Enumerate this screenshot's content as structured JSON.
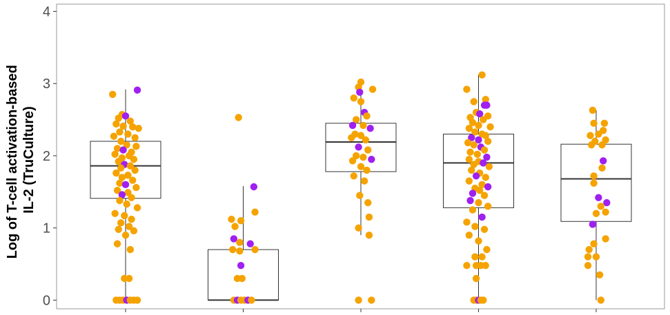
{
  "chart_data": {
    "type": "box",
    "title": "",
    "xlabel": "",
    "ylabel_lines": [
      "Log of T-cell activation-based",
      "IL-2 (TruCulture)"
    ],
    "ylim": [
      -0.12,
      4.1
    ],
    "yticks": [
      0,
      1,
      2,
      3,
      4
    ],
    "xtick_count": 5,
    "grid": false,
    "colors": {
      "orange": "#f5a300",
      "purple": "#a020f0",
      "box_line": "#333333",
      "panel_border": "#999999",
      "tick": "#333333"
    },
    "boxes": [
      {
        "q1": 1.41,
        "median": 1.86,
        "q3": 2.2,
        "whisker_low": 0,
        "whisker_high": 2.92
      },
      {
        "q1": 0,
        "median": 0,
        "q3": 0.7,
        "whisker_low": 0,
        "whisker_high": 1.58
      },
      {
        "q1": 1.78,
        "median": 2.19,
        "q3": 2.45,
        "whisker_low": 0.9,
        "whisker_high": 3.0
      },
      {
        "q1": 1.28,
        "median": 1.9,
        "q3": 2.3,
        "whisker_low": 0,
        "whisker_high": 3.12
      },
      {
        "q1": 1.09,
        "median": 1.68,
        "q3": 2.16,
        "whisker_low": 0,
        "whisker_high": 2.63
      }
    ],
    "points": [
      [
        {
          "x": 0.89,
          "y": 2.85,
          "g": "o"
        },
        {
          "x": 1.1,
          "y": 2.91,
          "g": "p"
        },
        {
          "x": 0.97,
          "y": 2.57,
          "g": "o"
        },
        {
          "x": 1.0,
          "y": 2.55,
          "g": "p"
        },
        {
          "x": 0.94,
          "y": 2.52,
          "g": "o"
        },
        {
          "x": 1.04,
          "y": 2.48,
          "g": "o"
        },
        {
          "x": 0.92,
          "y": 2.44,
          "g": "o"
        },
        {
          "x": 0.98,
          "y": 2.41,
          "g": "o"
        },
        {
          "x": 1.06,
          "y": 2.4,
          "g": "o"
        },
        {
          "x": 1.11,
          "y": 2.38,
          "g": "o"
        },
        {
          "x": 0.95,
          "y": 2.33,
          "g": "o"
        },
        {
          "x": 1.02,
          "y": 2.3,
          "g": "o"
        },
        {
          "x": 0.9,
          "y": 2.27,
          "g": "o"
        },
        {
          "x": 1.08,
          "y": 2.25,
          "g": "o"
        },
        {
          "x": 0.96,
          "y": 2.2,
          "g": "o"
        },
        {
          "x": 1.01,
          "y": 2.15,
          "g": "o"
        },
        {
          "x": 1.09,
          "y": 2.13,
          "g": "o"
        },
        {
          "x": 0.93,
          "y": 2.1,
          "g": "o"
        },
        {
          "x": 0.98,
          "y": 2.08,
          "g": "p"
        },
        {
          "x": 1.05,
          "y": 2.05,
          "g": "o"
        },
        {
          "x": 0.91,
          "y": 2.02,
          "g": "o"
        },
        {
          "x": 1.03,
          "y": 2.0,
          "g": "o"
        },
        {
          "x": 0.97,
          "y": 1.97,
          "g": "o"
        },
        {
          "x": 1.07,
          "y": 1.95,
          "g": "o"
        },
        {
          "x": 0.94,
          "y": 1.92,
          "g": "o"
        },
        {
          "x": 0.99,
          "y": 1.88,
          "g": "p"
        },
        {
          "x": 1.04,
          "y": 1.86,
          "g": "o"
        },
        {
          "x": 0.96,
          "y": 1.83,
          "g": "o"
        },
        {
          "x": 1.08,
          "y": 1.8,
          "g": "o"
        },
        {
          "x": 0.92,
          "y": 1.76,
          "g": "o"
        },
        {
          "x": 1.02,
          "y": 1.73,
          "g": "o"
        },
        {
          "x": 0.97,
          "y": 1.7,
          "g": "o"
        },
        {
          "x": 1.06,
          "y": 1.66,
          "g": "o"
        },
        {
          "x": 0.95,
          "y": 1.62,
          "g": "o"
        },
        {
          "x": 1.0,
          "y": 1.6,
          "g": "p"
        },
        {
          "x": 1.09,
          "y": 1.56,
          "g": "o"
        },
        {
          "x": 0.93,
          "y": 1.52,
          "g": "o"
        },
        {
          "x": 1.02,
          "y": 1.49,
          "g": "o"
        },
        {
          "x": 0.97,
          "y": 1.46,
          "g": "p"
        },
        {
          "x": 1.05,
          "y": 1.42,
          "g": "o"
        },
        {
          "x": 0.95,
          "y": 1.38,
          "g": "o"
        },
        {
          "x": 1.01,
          "y": 1.33,
          "g": "o"
        },
        {
          "x": 1.1,
          "y": 1.28,
          "g": "o"
        },
        {
          "x": 0.91,
          "y": 1.2,
          "g": "o"
        },
        {
          "x": 0.99,
          "y": 1.17,
          "g": "o"
        },
        {
          "x": 1.05,
          "y": 1.12,
          "g": "o"
        },
        {
          "x": 0.96,
          "y": 1.07,
          "g": "o"
        },
        {
          "x": 1.03,
          "y": 1.02,
          "g": "o"
        },
        {
          "x": 0.94,
          "y": 0.98,
          "g": "o"
        },
        {
          "x": 1.07,
          "y": 0.96,
          "g": "o"
        },
        {
          "x": 1.0,
          "y": 0.9,
          "g": "o"
        },
        {
          "x": 0.93,
          "y": 0.78,
          "g": "o"
        },
        {
          "x": 1.04,
          "y": 0.7,
          "g": "o"
        },
        {
          "x": 0.99,
          "y": 0.3,
          "g": "o"
        },
        {
          "x": 1.03,
          "y": 0.3,
          "g": "o"
        },
        {
          "x": 0.92,
          "y": 0,
          "g": "o"
        },
        {
          "x": 0.95,
          "y": 0,
          "g": "o"
        },
        {
          "x": 0.98,
          "y": 0,
          "g": "o"
        },
        {
          "x": 1.01,
          "y": 0,
          "g": "p"
        },
        {
          "x": 1.04,
          "y": 0,
          "g": "o"
        },
        {
          "x": 1.07,
          "y": 0,
          "g": "o"
        },
        {
          "x": 1.1,
          "y": 0,
          "g": "o"
        }
      ],
      [
        {
          "x": 1.96,
          "y": 2.53,
          "g": "o"
        },
        {
          "x": 2.09,
          "y": 1.57,
          "g": "p"
        },
        {
          "x": 2.1,
          "y": 1.22,
          "g": "o"
        },
        {
          "x": 1.9,
          "y": 1.12,
          "g": "o"
        },
        {
          "x": 1.98,
          "y": 1.1,
          "g": "o"
        },
        {
          "x": 1.93,
          "y": 1.02,
          "g": "o"
        },
        {
          "x": 1.92,
          "y": 0.85,
          "g": "p"
        },
        {
          "x": 1.97,
          "y": 0.8,
          "g": "o"
        },
        {
          "x": 2.06,
          "y": 0.78,
          "g": "p"
        },
        {
          "x": 1.91,
          "y": 0.7,
          "g": "o"
        },
        {
          "x": 1.97,
          "y": 0.68,
          "g": "o"
        },
        {
          "x": 2.1,
          "y": 0.7,
          "g": "o"
        },
        {
          "x": 1.98,
          "y": 0.48,
          "g": "p"
        },
        {
          "x": 1.95,
          "y": 0.3,
          "g": "o"
        },
        {
          "x": 1.99,
          "y": 0.3,
          "g": "o"
        },
        {
          "x": 1.92,
          "y": 0,
          "g": "o"
        },
        {
          "x": 1.95,
          "y": 0,
          "g": "p"
        },
        {
          "x": 1.98,
          "y": 0,
          "g": "o"
        },
        {
          "x": 2.01,
          "y": 0,
          "g": "o"
        },
        {
          "x": 2.04,
          "y": 0,
          "g": "p"
        },
        {
          "x": 2.07,
          "y": 0,
          "g": "o"
        }
      ],
      [
        {
          "x": 3.0,
          "y": 3.02,
          "g": "o"
        },
        {
          "x": 2.98,
          "y": 2.95,
          "g": "o"
        },
        {
          "x": 3.1,
          "y": 2.92,
          "g": "o"
        },
        {
          "x": 2.99,
          "y": 2.88,
          "g": "p"
        },
        {
          "x": 2.94,
          "y": 2.8,
          "g": "o"
        },
        {
          "x": 3.0,
          "y": 2.75,
          "g": "o"
        },
        {
          "x": 3.03,
          "y": 2.6,
          "g": "p"
        },
        {
          "x": 3.05,
          "y": 2.55,
          "g": "o"
        },
        {
          "x": 2.96,
          "y": 2.5,
          "g": "o"
        },
        {
          "x": 2.93,
          "y": 2.42,
          "g": "p"
        },
        {
          "x": 3.02,
          "y": 2.42,
          "g": "o"
        },
        {
          "x": 3.08,
          "y": 2.38,
          "g": "p"
        },
        {
          "x": 2.95,
          "y": 2.3,
          "g": "o"
        },
        {
          "x": 3.0,
          "y": 2.28,
          "g": "o"
        },
        {
          "x": 2.92,
          "y": 2.25,
          "g": "o"
        },
        {
          "x": 3.04,
          "y": 2.22,
          "g": "o"
        },
        {
          "x": 2.98,
          "y": 2.12,
          "g": "p"
        },
        {
          "x": 3.06,
          "y": 2.08,
          "g": "o"
        },
        {
          "x": 2.96,
          "y": 2.0,
          "g": "o"
        },
        {
          "x": 3.02,
          "y": 1.98,
          "g": "o"
        },
        {
          "x": 3.09,
          "y": 1.95,
          "g": "p"
        },
        {
          "x": 2.93,
          "y": 1.93,
          "g": "o"
        },
        {
          "x": 3.0,
          "y": 1.85,
          "g": "o"
        },
        {
          "x": 3.05,
          "y": 1.8,
          "g": "o"
        },
        {
          "x": 2.94,
          "y": 1.72,
          "g": "o"
        },
        {
          "x": 3.03,
          "y": 1.65,
          "g": "o"
        },
        {
          "x": 2.99,
          "y": 1.45,
          "g": "o"
        },
        {
          "x": 3.06,
          "y": 1.35,
          "g": "o"
        },
        {
          "x": 3.07,
          "y": 1.15,
          "g": "o"
        },
        {
          "x": 2.98,
          "y": 1.0,
          "g": "o"
        },
        {
          "x": 3.07,
          "y": 0.9,
          "g": "o"
        },
        {
          "x": 2.98,
          "y": 0,
          "g": "o"
        },
        {
          "x": 3.09,
          "y": 0,
          "g": "o"
        }
      ],
      [
        {
          "x": 4.03,
          "y": 3.12,
          "g": "o"
        },
        {
          "x": 3.9,
          "y": 2.92,
          "g": "o"
        },
        {
          "x": 4.06,
          "y": 2.78,
          "g": "o"
        },
        {
          "x": 3.96,
          "y": 2.75,
          "g": "o"
        },
        {
          "x": 4.07,
          "y": 2.7,
          "g": "p"
        },
        {
          "x": 4.05,
          "y": 2.7,
          "g": "p"
        },
        {
          "x": 3.98,
          "y": 2.6,
          "g": "o"
        },
        {
          "x": 4.01,
          "y": 2.58,
          "g": "p"
        },
        {
          "x": 4.08,
          "y": 2.55,
          "g": "o"
        },
        {
          "x": 3.93,
          "y": 2.53,
          "g": "o"
        },
        {
          "x": 4.04,
          "y": 2.5,
          "g": "o"
        },
        {
          "x": 3.95,
          "y": 2.46,
          "g": "o"
        },
        {
          "x": 4.0,
          "y": 2.42,
          "g": "o"
        },
        {
          "x": 4.1,
          "y": 2.4,
          "g": "o"
        },
        {
          "x": 3.92,
          "y": 2.38,
          "g": "o"
        },
        {
          "x": 3.97,
          "y": 2.33,
          "g": "o"
        },
        {
          "x": 4.03,
          "y": 2.3,
          "g": "o"
        },
        {
          "x": 4.06,
          "y": 2.28,
          "g": "o"
        },
        {
          "x": 3.94,
          "y": 2.25,
          "g": "p"
        },
        {
          "x": 4.0,
          "y": 2.22,
          "g": "p"
        },
        {
          "x": 4.08,
          "y": 2.2,
          "g": "o"
        },
        {
          "x": 3.91,
          "y": 2.18,
          "g": "o"
        },
        {
          "x": 3.96,
          "y": 2.15,
          "g": "o"
        },
        {
          "x": 4.02,
          "y": 2.12,
          "g": "p"
        },
        {
          "x": 4.05,
          "y": 2.08,
          "g": "o"
        },
        {
          "x": 3.93,
          "y": 2.05,
          "g": "o"
        },
        {
          "x": 3.99,
          "y": 2.02,
          "g": "o"
        },
        {
          "x": 4.07,
          "y": 1.98,
          "g": "p"
        },
        {
          "x": 3.92,
          "y": 1.95,
          "g": "o"
        },
        {
          "x": 4.0,
          "y": 1.92,
          "g": "o"
        },
        {
          "x": 4.04,
          "y": 1.9,
          "g": "p"
        },
        {
          "x": 3.96,
          "y": 1.88,
          "g": "o"
        },
        {
          "x": 4.09,
          "y": 1.85,
          "g": "o"
        },
        {
          "x": 3.94,
          "y": 1.8,
          "g": "o"
        },
        {
          "x": 4.01,
          "y": 1.76,
          "g": "o"
        },
        {
          "x": 3.98,
          "y": 1.72,
          "g": "p"
        },
        {
          "x": 4.06,
          "y": 1.7,
          "g": "o"
        },
        {
          "x": 3.92,
          "y": 1.65,
          "g": "o"
        },
        {
          "x": 4.03,
          "y": 1.6,
          "g": "o"
        },
        {
          "x": 4.08,
          "y": 1.57,
          "g": "p"
        },
        {
          "x": 3.97,
          "y": 1.55,
          "g": "o"
        },
        {
          "x": 4.01,
          "y": 1.52,
          "g": "o"
        },
        {
          "x": 3.95,
          "y": 1.48,
          "g": "p"
        },
        {
          "x": 4.05,
          "y": 1.45,
          "g": "o"
        },
        {
          "x": 3.93,
          "y": 1.38,
          "g": "p"
        },
        {
          "x": 4.0,
          "y": 1.35,
          "g": "o"
        },
        {
          "x": 4.08,
          "y": 1.3,
          "g": "o"
        },
        {
          "x": 3.95,
          "y": 1.25,
          "g": "o"
        },
        {
          "x": 4.03,
          "y": 1.15,
          "g": "p"
        },
        {
          "x": 3.9,
          "y": 1.08,
          "g": "o"
        },
        {
          "x": 3.97,
          "y": 1.02,
          "g": "o"
        },
        {
          "x": 4.05,
          "y": 0.98,
          "g": "o"
        },
        {
          "x": 3.92,
          "y": 0.9,
          "g": "o"
        },
        {
          "x": 4.0,
          "y": 0.82,
          "g": "o"
        },
        {
          "x": 4.07,
          "y": 0.7,
          "g": "o"
        },
        {
          "x": 3.97,
          "y": 0.6,
          "g": "o"
        },
        {
          "x": 4.03,
          "y": 0.6,
          "g": "o"
        },
        {
          "x": 3.9,
          "y": 0.48,
          "g": "o"
        },
        {
          "x": 3.98,
          "y": 0.48,
          "g": "o"
        },
        {
          "x": 4.02,
          "y": 0.48,
          "g": "o"
        },
        {
          "x": 4.06,
          "y": 0.48,
          "g": "o"
        },
        {
          "x": 3.98,
          "y": 0.3,
          "g": "o"
        },
        {
          "x": 3.96,
          "y": 0,
          "g": "o"
        },
        {
          "x": 3.98,
          "y": 0,
          "g": "o"
        },
        {
          "x": 4.0,
          "y": 0,
          "g": "p"
        },
        {
          "x": 4.02,
          "y": 0,
          "g": "o"
        },
        {
          "x": 4.04,
          "y": 0,
          "g": "o"
        }
      ],
      [
        {
          "x": 4.97,
          "y": 2.63,
          "g": "o"
        },
        {
          "x": 5.07,
          "y": 2.45,
          "g": "o"
        },
        {
          "x": 4.98,
          "y": 2.45,
          "g": "o"
        },
        {
          "x": 5.06,
          "y": 2.35,
          "g": "o"
        },
        {
          "x": 5.02,
          "y": 2.3,
          "g": "o"
        },
        {
          "x": 4.95,
          "y": 2.28,
          "g": "o"
        },
        {
          "x": 5.08,
          "y": 2.22,
          "g": "o"
        },
        {
          "x": 4.99,
          "y": 2.2,
          "g": "o"
        },
        {
          "x": 5.05,
          "y": 2.15,
          "g": "o"
        },
        {
          "x": 4.96,
          "y": 2.15,
          "g": "o"
        },
        {
          "x": 5.06,
          "y": 1.93,
          "g": "p"
        },
        {
          "x": 5.05,
          "y": 1.83,
          "g": "o"
        },
        {
          "x": 4.98,
          "y": 1.72,
          "g": "o"
        },
        {
          "x": 4.98,
          "y": 1.62,
          "g": "o"
        },
        {
          "x": 5.02,
          "y": 1.42,
          "g": "p"
        },
        {
          "x": 5.09,
          "y": 1.35,
          "g": "p"
        },
        {
          "x": 5.04,
          "y": 1.3,
          "g": "o"
        },
        {
          "x": 5.08,
          "y": 1.22,
          "g": "o"
        },
        {
          "x": 5.0,
          "y": 1.2,
          "g": "o"
        },
        {
          "x": 4.97,
          "y": 1.05,
          "g": "p"
        },
        {
          "x": 5.08,
          "y": 0.85,
          "g": "o"
        },
        {
          "x": 4.98,
          "y": 0.78,
          "g": "o"
        },
        {
          "x": 4.94,
          "y": 0.7,
          "g": "o"
        },
        {
          "x": 5.0,
          "y": 0.6,
          "g": "o"
        },
        {
          "x": 4.93,
          "y": 0.6,
          "g": "o"
        },
        {
          "x": 4.93,
          "y": 0.48,
          "g": "o"
        },
        {
          "x": 5.03,
          "y": 0.35,
          "g": "o"
        },
        {
          "x": 5.04,
          "y": 0,
          "g": "o"
        }
      ]
    ]
  }
}
